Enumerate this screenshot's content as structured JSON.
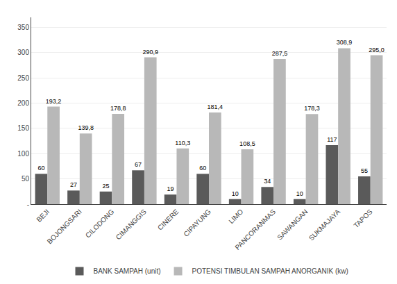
{
  "chart_data": {
    "type": "bar",
    "categories": [
      "BEJI",
      "BOJONGSARI",
      "CILODONG",
      "CIMANGGIS",
      "CINERE",
      "CIPAYUNG",
      "LIMO",
      "PANCORANMAS",
      "SAWANGAN",
      "SUKMAJAYA",
      "TAPOS"
    ],
    "series": [
      {
        "name": "BANK SAMPAH (unit)",
        "color": "#5a5a5a",
        "values": [
          60,
          27,
          25,
          67,
          19,
          60,
          10,
          34,
          10,
          117,
          55
        ]
      },
      {
        "name": "POTENSI TIMBULAN SAMPAH ANORGANIK (kw)",
        "color": "#b8b8b8",
        "values": [
          193.2,
          139.8,
          178.8,
          290.9,
          110.3,
          181.4,
          108.5,
          287.5,
          178.3,
          308.9,
          295.0
        ],
        "value_labels": [
          "193,2",
          "139,8",
          "178,8",
          "290,9",
          "110,3",
          "181,4",
          "108,5",
          "287,5",
          "178,3",
          "308,9",
          "295,0"
        ]
      }
    ],
    "ylim": [
      0,
      370
    ],
    "yticks": [
      {
        "value": 0,
        "label": "-"
      },
      50,
      100,
      150,
      200,
      250,
      300,
      350
    ],
    "grid": true,
    "legend": "bottom",
    "data_labels": true
  }
}
